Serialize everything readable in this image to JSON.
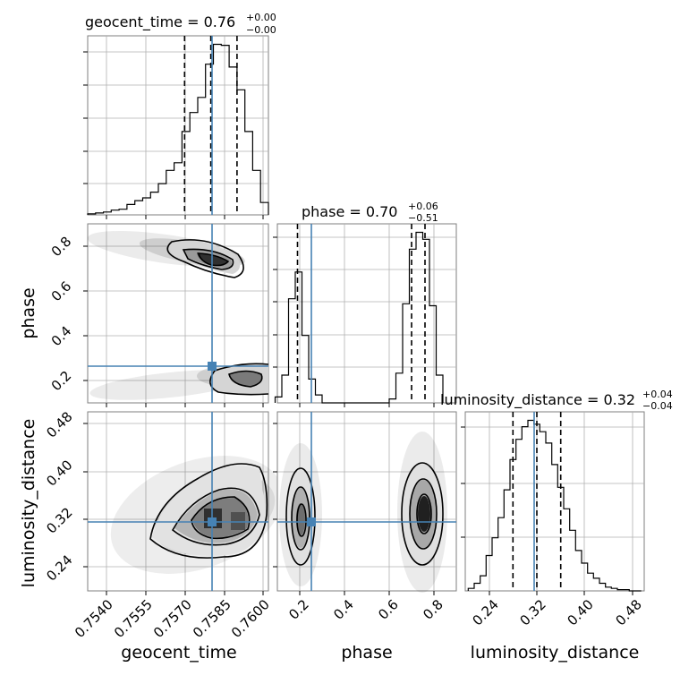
{
  "chart_data": {
    "type": "corner",
    "parameters": [
      "geocent_time",
      "phase",
      "luminosity_distance"
    ],
    "truth": {
      "geocent_time": 0.7579,
      "phase": 0.25,
      "luminosity_distance": 0.315
    },
    "marginals": [
      {
        "parameter": "geocent_time",
        "title_name": "geocent_time = ",
        "title_value": "0.76",
        "title_sup": "+0.00",
        "title_sub": "−0.00",
        "quantiles": [
          0.757,
          0.758,
          0.759
        ],
        "bin_edges": [
          0.7533,
          0.7536,
          0.7539,
          0.7542,
          0.7545,
          0.7548,
          0.7551,
          0.7554,
          0.7557,
          0.756,
          0.7563,
          0.7566,
          0.7569,
          0.7572,
          0.7575,
          0.7578,
          0.7581,
          0.7584,
          0.7587,
          0.759,
          0.7593,
          0.7596,
          0.7599,
          0.7602
        ],
        "counts": [
          1,
          2,
          3,
          5,
          6,
          11,
          15,
          18,
          24,
          33,
          47,
          55,
          88,
          108,
          124,
          159,
          180,
          179,
          156,
          132,
          88,
          47,
          13
        ]
      },
      {
        "parameter": "phase",
        "title_name": "phase = ",
        "title_value": "0.70",
        "title_sup": "+0.06",
        "title_sub": "−0.51",
        "quantiles": [
          0.19,
          0.7,
          0.76
        ],
        "bin_edges": [
          0.09,
          0.12,
          0.15,
          0.18,
          0.21,
          0.24,
          0.27,
          0.3,
          0.33,
          0.36,
          0.39,
          0.42,
          0.45,
          0.48,
          0.51,
          0.54,
          0.57,
          0.6,
          0.63,
          0.66,
          0.69,
          0.72,
          0.75,
          0.78,
          0.81,
          0.84
        ],
        "counts": [
          6,
          28,
          105,
          132,
          68,
          24,
          8,
          0,
          0,
          0,
          0,
          0,
          0,
          0,
          0,
          0,
          0,
          4,
          30,
          100,
          155,
          172,
          165,
          98,
          28
        ]
      },
      {
        "parameter": "luminosity_distance",
        "title_name": "luminosity_distance = ",
        "title_value": "0.32",
        "title_sup": "+0.04",
        "title_sub": "−0.04",
        "quantiles": [
          0.28,
          0.32,
          0.36
        ],
        "bin_edges": [
          0.205,
          0.215,
          0.225,
          0.235,
          0.245,
          0.255,
          0.265,
          0.275,
          0.285,
          0.295,
          0.305,
          0.315,
          0.325,
          0.335,
          0.345,
          0.355,
          0.365,
          0.375,
          0.385,
          0.395,
          0.405,
          0.415,
          0.425,
          0.435,
          0.445,
          0.455,
          0.465,
          0.475,
          0.485,
          0.495
        ],
        "counts": [
          2,
          6,
          12,
          28,
          42,
          58,
          80,
          104,
          120,
          130,
          135,
          132,
          126,
          117,
          100,
          82,
          65,
          48,
          32,
          22,
          14,
          10,
          6,
          3,
          2,
          1,
          1,
          0,
          0
        ]
      }
    ],
    "axes": {
      "geocent_time": {
        "range": [
          0.7533,
          0.7602
        ],
        "ticks": [
          0.754,
          0.7555,
          0.757,
          0.7585,
          0.76
        ],
        "ticklabels": [
          "0.7540",
          "0.7555",
          "0.7570",
          "0.7585",
          "0.7600"
        ]
      },
      "phase": {
        "range": [
          0.1,
          0.9
        ],
        "ticks": [
          0.2,
          0.4,
          0.6,
          0.8
        ],
        "ticklabels": [
          "0.2",
          "0.4",
          "0.6",
          "0.8"
        ]
      },
      "luminosity_distance": {
        "range": [
          0.2,
          0.5
        ],
        "ticks": [
          0.24,
          0.32,
          0.4,
          0.48
        ],
        "ticklabels": [
          "0.24",
          "0.32",
          "0.40",
          "0.48"
        ]
      }
    },
    "xlabels": [
      "geocent_time",
      "phase",
      "luminosity_distance"
    ],
    "ylabels": [
      "phase",
      "luminosity_distance"
    ],
    "grid": true
  }
}
